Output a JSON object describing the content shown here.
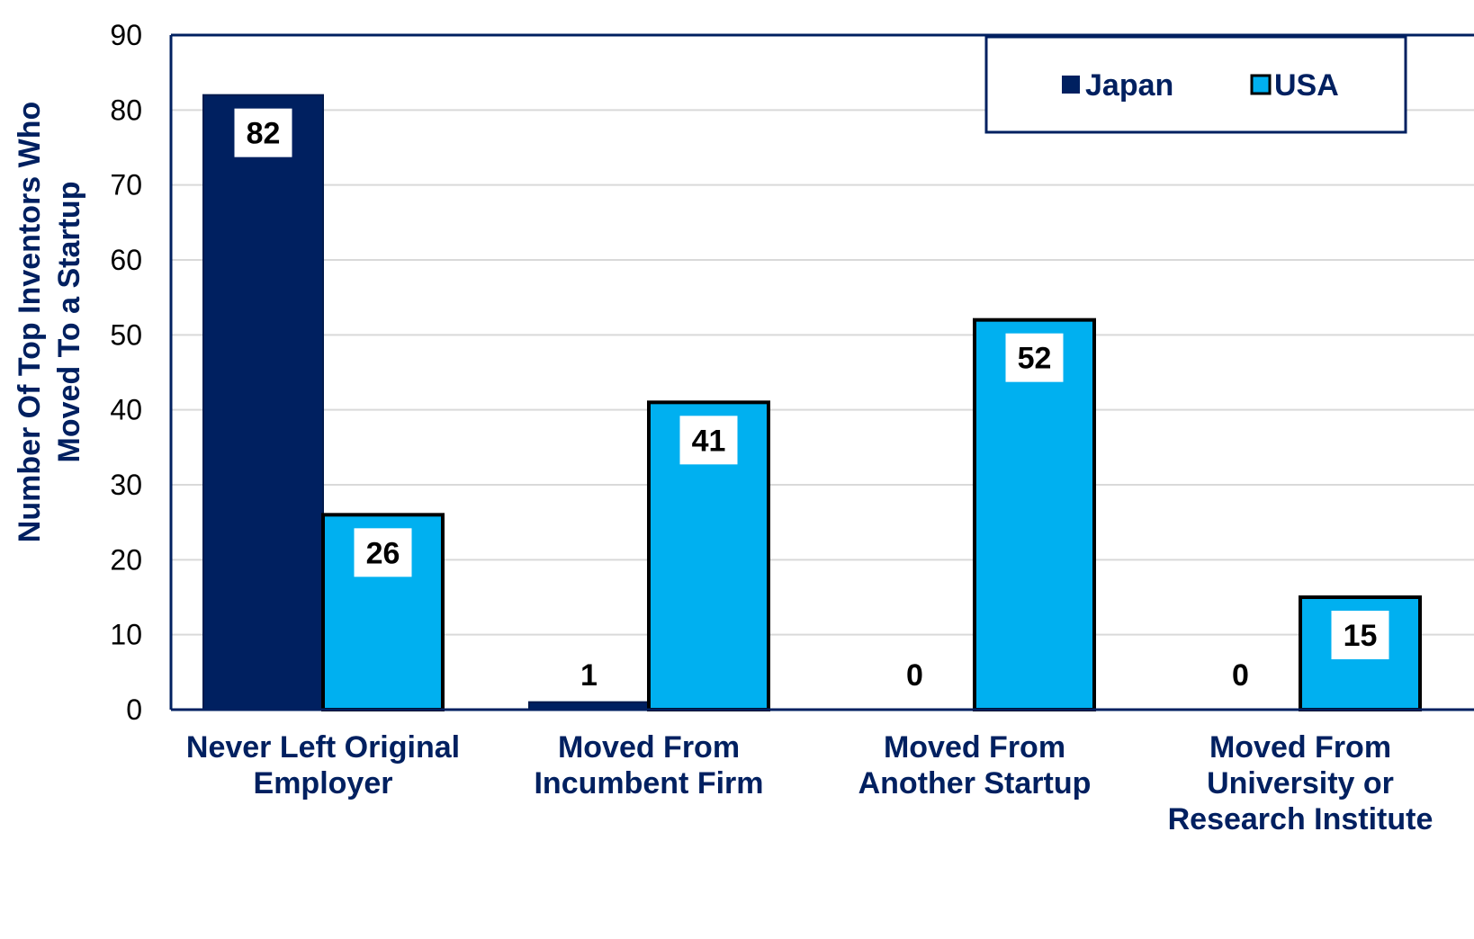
{
  "chart_data": {
    "type": "bar",
    "title": "",
    "ylabel": "Number Of Top Inventors Who Moved To a Startup",
    "ylabel_lines": [
      "Number Of Top Inventors Who",
      "Moved To a Startup"
    ],
    "xlabel": "",
    "ylim": [
      0,
      90
    ],
    "yticks": [
      0,
      10,
      20,
      30,
      40,
      50,
      60,
      70,
      80,
      90
    ],
    "grid": true,
    "legend_position": "top-right",
    "categories": [
      "Never Left Original Employer",
      "Moved From Incumbent Firm",
      "Moved From Another Startup",
      "Moved From University or Research Institute"
    ],
    "category_lines": [
      [
        "Never Left Original",
        "Employer"
      ],
      [
        "Moved From",
        "Incumbent Firm"
      ],
      [
        "Moved From",
        "Another Startup"
      ],
      [
        "Moved From",
        "University or",
        "Research Institute"
      ]
    ],
    "series": [
      {
        "name": "Japan",
        "values": [
          82,
          1,
          0,
          0
        ],
        "color": "#002060"
      },
      {
        "name": "USA",
        "values": [
          26,
          41,
          52,
          15
        ],
        "color": "#00B0F0"
      }
    ]
  }
}
